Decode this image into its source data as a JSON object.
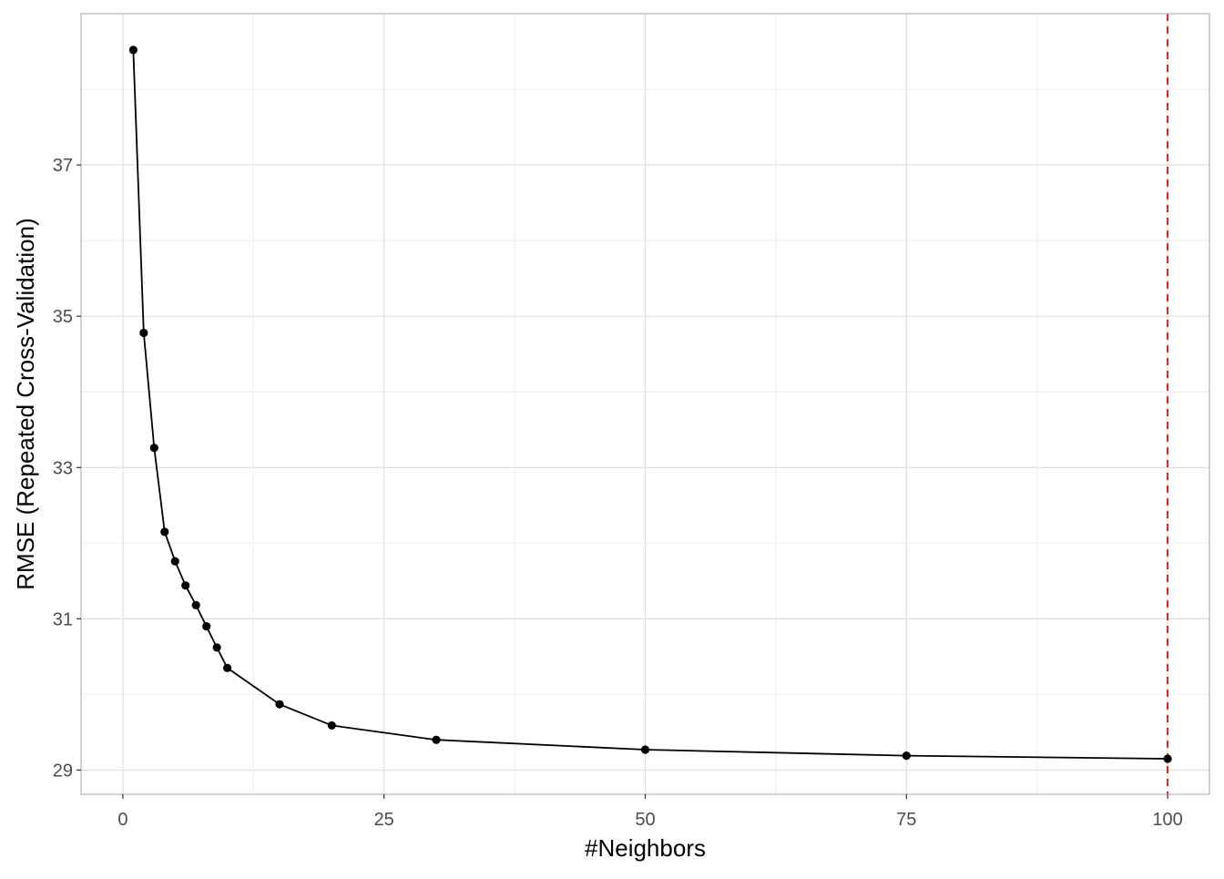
{
  "chart_data": {
    "type": "line",
    "title": "",
    "xlabel": "#Neighbors",
    "ylabel": "RMSE (Repeated Cross-Validation)",
    "x": [
      1,
      2,
      3,
      4,
      5,
      6,
      7,
      8,
      9,
      10,
      15,
      20,
      30,
      50,
      75,
      100
    ],
    "series": [
      {
        "values": [
          38.52,
          34.78,
          33.26,
          32.15,
          31.76,
          31.44,
          31.18,
          30.9,
          30.62,
          30.35,
          29.87,
          29.59,
          29.4,
          29.27,
          29.19,
          29.15
        ]
      }
    ],
    "xlim": [
      -4,
      104
    ],
    "ylim": [
      28.68,
      39.0
    ],
    "xticks": [
      0,
      25,
      50,
      75,
      100
    ],
    "xtick_labels": [
      "0",
      "25",
      "50",
      "75",
      "100"
    ],
    "xminor": [
      12.5,
      37.5,
      62.5,
      87.5
    ],
    "yticks": [
      29,
      31,
      33,
      35,
      37
    ],
    "ytick_labels": [
      "29",
      "31",
      "33",
      "35",
      "37"
    ],
    "yminor": [
      30,
      32,
      34,
      36,
      38
    ],
    "vline": {
      "x": 100,
      "color": "#e41a1c",
      "style": "dashed"
    },
    "line_color": "#000000",
    "point_color": "#000000",
    "grid": true,
    "legend": "none"
  }
}
